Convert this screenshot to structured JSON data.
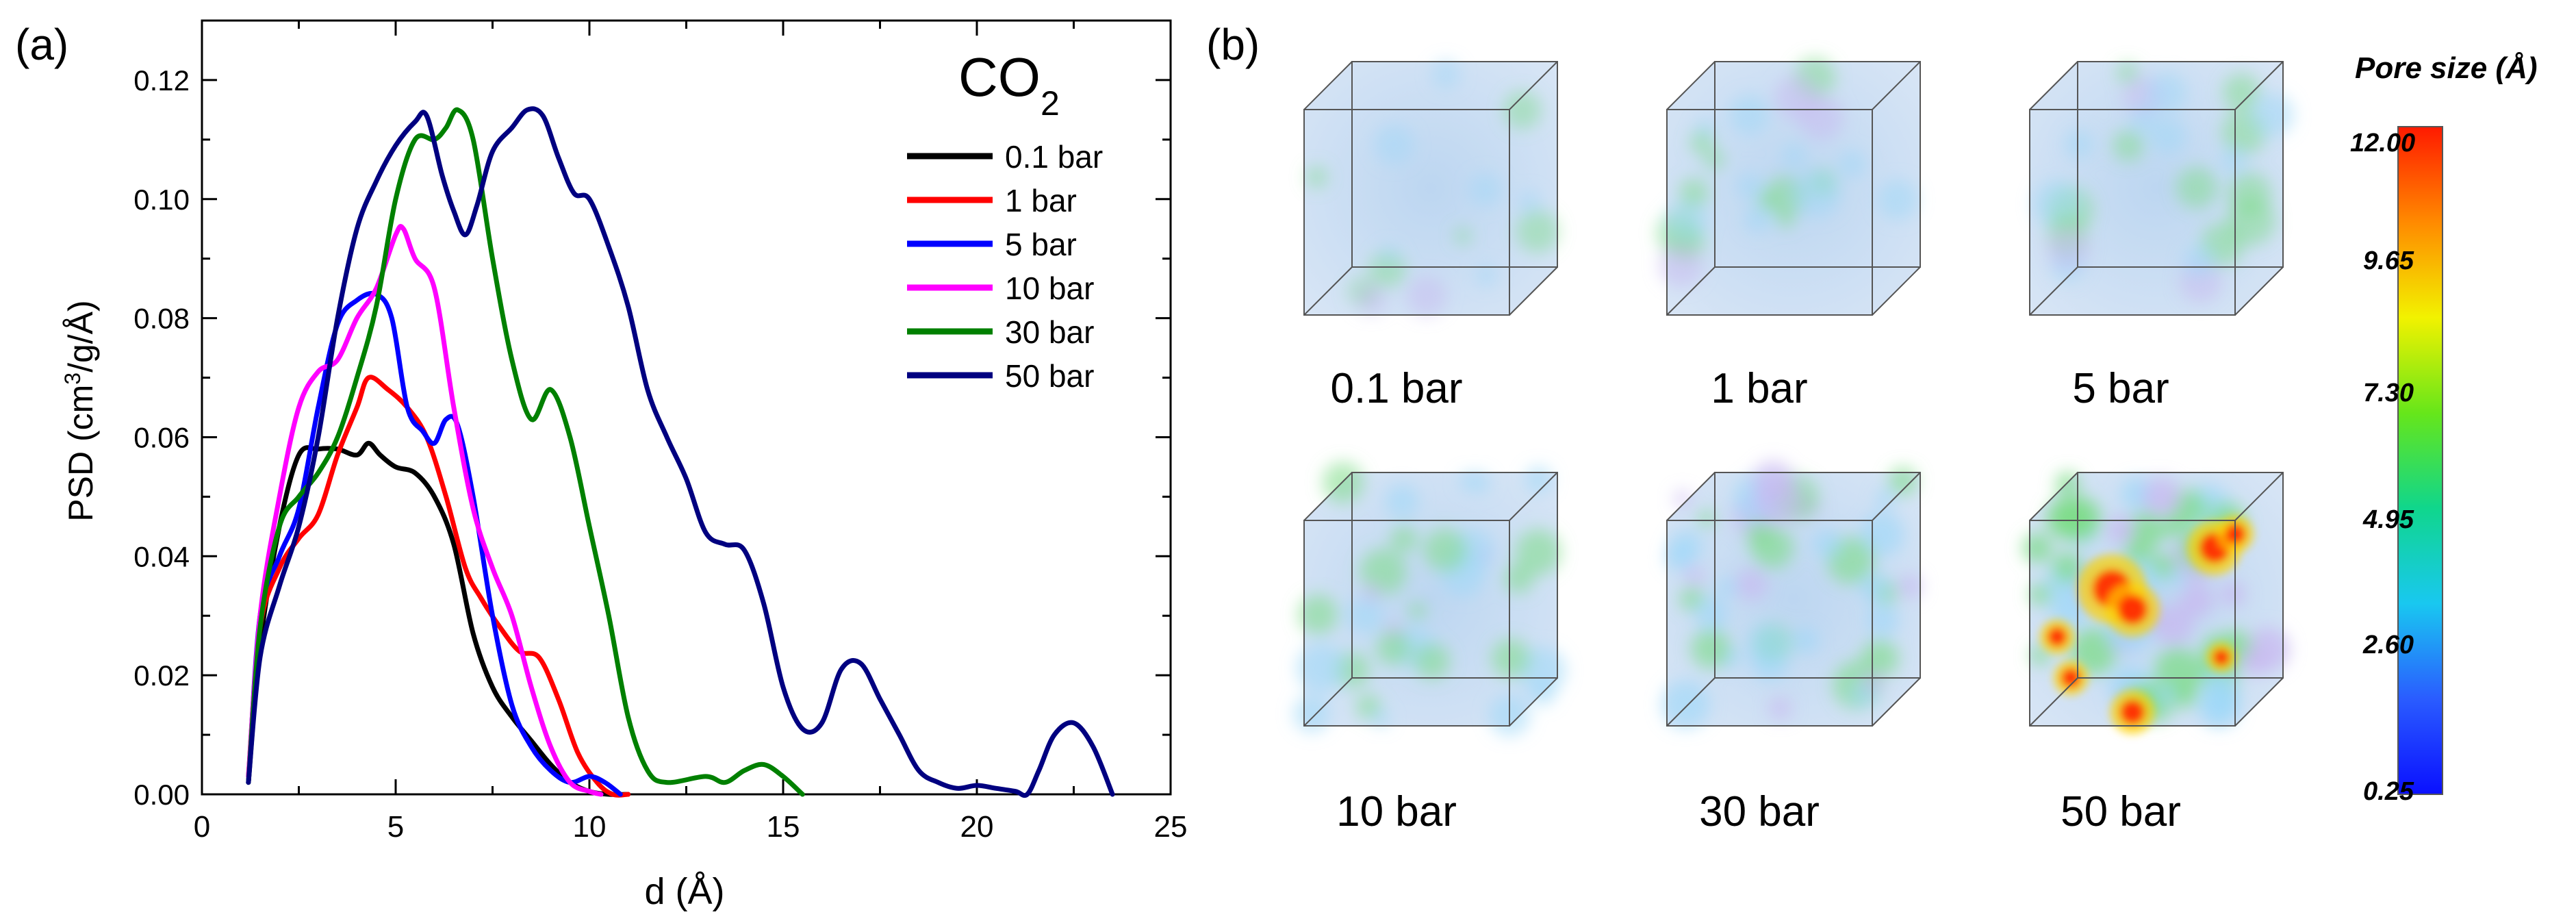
{
  "panel_a_label": "(a)",
  "panel_b_label": "(b)",
  "chart_data": {
    "type": "line",
    "title": "",
    "legend_title_main": "CO",
    "legend_title_sub": "2",
    "xlabel": "d (Å)",
    "ylabel_pre": "PSD (cm",
    "ylabel_sup": "3",
    "ylabel_post": "/g/Å)",
    "xlim": [
      0,
      25
    ],
    "ylim": [
      0,
      0.13
    ],
    "x_ticks": [
      0,
      5,
      10,
      15,
      20,
      25
    ],
    "y_ticks": [
      0.0,
      0.02,
      0.04,
      0.06,
      0.08,
      0.1,
      0.12
    ],
    "y_tick_labels": [
      "0.00",
      "0.02",
      "0.04",
      "0.06",
      "0.08",
      "0.10",
      "0.12"
    ],
    "legend_position": "top-right",
    "grid": false,
    "series": [
      {
        "name": "0.1 bar",
        "color": "#000000",
        "x": [
          1.2,
          1.5,
          2,
          2.5,
          3,
          3.5,
          4,
          4.3,
          4.6,
          5,
          5.5,
          6,
          6.5,
          7,
          7.5,
          8,
          8.5,
          9,
          9.5,
          10,
          10.5,
          11
        ],
        "y": [
          0.002,
          0.025,
          0.045,
          0.057,
          0.058,
          0.058,
          0.057,
          0.059,
          0.057,
          0.055,
          0.054,
          0.05,
          0.042,
          0.027,
          0.018,
          0.013,
          0.009,
          0.005,
          0.002,
          0.0005,
          0,
          0
        ]
      },
      {
        "name": "1 bar",
        "color": "#ff0000",
        "x": [
          1.2,
          1.5,
          2,
          2.5,
          3,
          3.5,
          4,
          4.3,
          4.8,
          5.3,
          5.8,
          6.3,
          6.8,
          7.2,
          7.7,
          8.2,
          8.7,
          9.2,
          9.7,
          10.2,
          10.6,
          11
        ],
        "y": [
          0.003,
          0.028,
          0.038,
          0.043,
          0.047,
          0.057,
          0.065,
          0.07,
          0.068,
          0.065,
          0.06,
          0.05,
          0.038,
          0.033,
          0.028,
          0.024,
          0.023,
          0.016,
          0.007,
          0.002,
          0,
          0
        ]
      },
      {
        "name": "5 bar",
        "color": "#0000ff",
        "x": [
          1.2,
          1.5,
          2,
          2.5,
          3,
          3.5,
          4,
          4.5,
          4.9,
          5.3,
          5.7,
          6.0,
          6.3,
          6.6,
          7.0,
          7.5,
          8,
          8.5,
          9,
          9.5,
          10,
          10.4,
          10.8
        ],
        "y": [
          0.002,
          0.03,
          0.04,
          0.048,
          0.065,
          0.079,
          0.083,
          0.084,
          0.08,
          0.065,
          0.061,
          0.059,
          0.063,
          0.062,
          0.05,
          0.03,
          0.015,
          0.008,
          0.004,
          0.002,
          0.003,
          0.002,
          0
        ]
      },
      {
        "name": "10 bar",
        "color": "#ff00ff",
        "x": [
          1.2,
          1.5,
          2,
          2.5,
          3,
          3.5,
          4,
          4.5,
          5,
          5.2,
          5.5,
          6,
          6.5,
          7,
          7.5,
          8,
          8.5,
          9,
          9.5,
          10,
          10.3
        ],
        "y": [
          0.003,
          0.03,
          0.05,
          0.065,
          0.071,
          0.073,
          0.08,
          0.085,
          0.094,
          0.095,
          0.09,
          0.085,
          0.065,
          0.048,
          0.038,
          0.03,
          0.018,
          0.008,
          0.002,
          0.0005,
          0
        ]
      },
      {
        "name": "30 bar",
        "color": "#008000",
        "x": [
          1.2,
          1.5,
          2,
          2.5,
          3,
          3.5,
          4,
          4.5,
          5,
          5.5,
          6,
          6.3,
          6.6,
          7,
          7.5,
          8,
          8.5,
          9,
          9.5,
          10,
          10.5,
          11,
          11.5,
          12,
          13,
          13.5,
          14,
          14.5,
          15,
          15.5
        ],
        "y": [
          0.002,
          0.028,
          0.045,
          0.05,
          0.054,
          0.06,
          0.07,
          0.082,
          0.1,
          0.11,
          0.11,
          0.112,
          0.115,
          0.11,
          0.09,
          0.073,
          0.063,
          0.068,
          0.06,
          0.045,
          0.03,
          0.013,
          0.004,
          0.002,
          0.003,
          0.002,
          0.004,
          0.005,
          0.003,
          0
        ]
      },
      {
        "name": "50 bar",
        "color": "#000080",
        "x": [
          1.2,
          1.5,
          2,
          2.5,
          3,
          3.5,
          4,
          4.5,
          5,
          5.5,
          5.8,
          6.2,
          6.5,
          6.8,
          7.1,
          7.5,
          8,
          8.4,
          8.8,
          9.2,
          9.6,
          10,
          10.5,
          11,
          11.5,
          12,
          12.5,
          13,
          13.5,
          14,
          14.5,
          15,
          15.5,
          16,
          16.5,
          17,
          17.5,
          18,
          18.5,
          19,
          19.5,
          20,
          20.5,
          21,
          21.3,
          21.6,
          22,
          22.5,
          23,
          23.5
        ],
        "y": [
          0.002,
          0.023,
          0.035,
          0.045,
          0.06,
          0.08,
          0.095,
          0.103,
          0.109,
          0.113,
          0.114,
          0.104,
          0.098,
          0.094,
          0.099,
          0.108,
          0.112,
          0.115,
          0.114,
          0.107,
          0.101,
          0.1,
          0.092,
          0.082,
          0.068,
          0.06,
          0.053,
          0.044,
          0.042,
          0.041,
          0.032,
          0.018,
          0.011,
          0.012,
          0.021,
          0.022,
          0.016,
          0.01,
          0.004,
          0.002,
          0.001,
          0.0015,
          0.001,
          0.0005,
          0,
          0.004,
          0.01,
          0.012,
          0.008,
          0
        ]
      }
    ]
  },
  "cubes": [
    {
      "label": "0.1 bar",
      "intensity": 0
    },
    {
      "label": "1 bar",
      "intensity": 1
    },
    {
      "label": "5 bar",
      "intensity": 1
    },
    {
      "label": "10 bar",
      "intensity": 2
    },
    {
      "label": "30 bar",
      "intensity": 3
    },
    {
      "label": "50 bar",
      "intensity": 5
    }
  ],
  "colorbar": {
    "title": "Pore size (Å)",
    "ticks": [
      "12.00",
      "9.65",
      "7.30",
      "4.95",
      "2.60",
      "0.25"
    ],
    "colors": [
      "#ff1a00",
      "#ff8a00",
      "#f2f200",
      "#66e61a",
      "#10d68c",
      "#19c8f0",
      "#2a5cff",
      "#0a10ff"
    ]
  }
}
